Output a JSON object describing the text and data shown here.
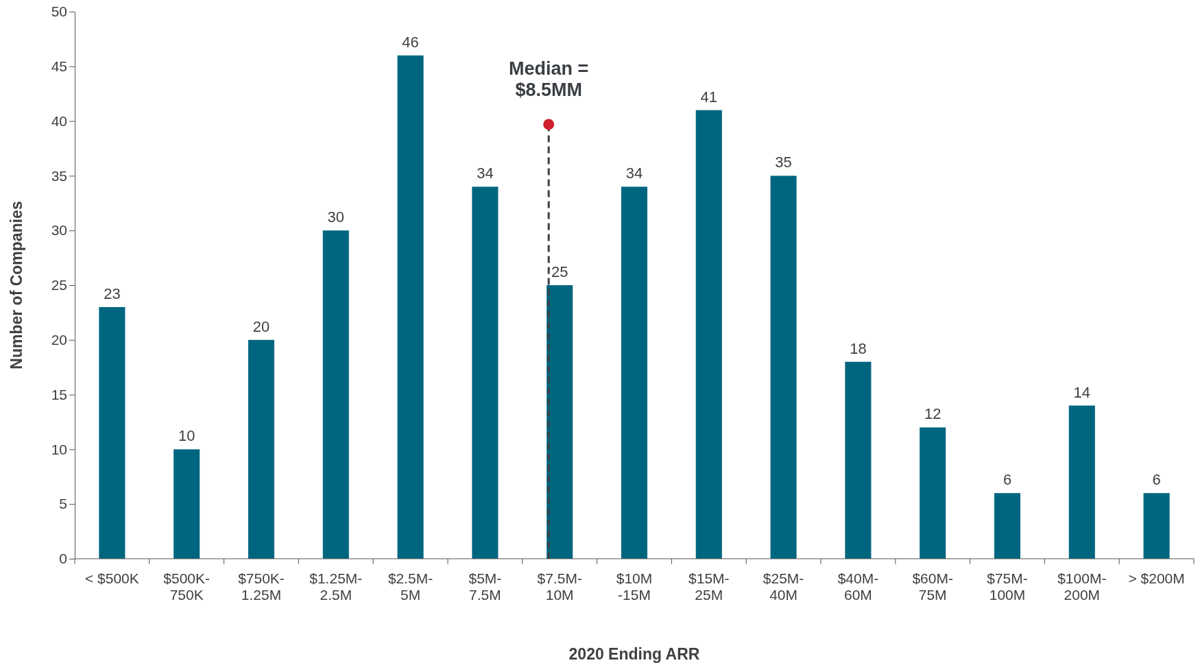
{
  "chart_data": {
    "type": "bar",
    "xlabel": "2020 Ending ARR",
    "ylabel": "Number of Companies",
    "categories": [
      "< $500K",
      "$500K-\n750K",
      "$750K-\n1.25M",
      "$1.25M-\n2.5M",
      "$2.5M-\n5M",
      "$5M-\n7.5M",
      "$7.5M-\n10M",
      "$10M\n-15M",
      "$15M-\n25M",
      "$25M-\n40M",
      "$40M-\n60M",
      "$60M-\n75M",
      "$75M-\n100M",
      "$100M-\n200M",
      "> $200M"
    ],
    "values": [
      23,
      10,
      20,
      30,
      46,
      34,
      25,
      34,
      41,
      35,
      18,
      12,
      6,
      14,
      6
    ],
    "color": "#006680",
    "ylim": [
      0,
      50
    ],
    "yticks": [
      0,
      5,
      10,
      15,
      20,
      25,
      30,
      35,
      40,
      45,
      50
    ],
    "data_labels": true,
    "ref_lines": [
      {
        "axis": "x",
        "value": "$7.5M-\n10M",
        "label": "Median =\n$8.5MM",
        "line_style": "dashed",
        "color": "#3a3f44"
      }
    ]
  }
}
